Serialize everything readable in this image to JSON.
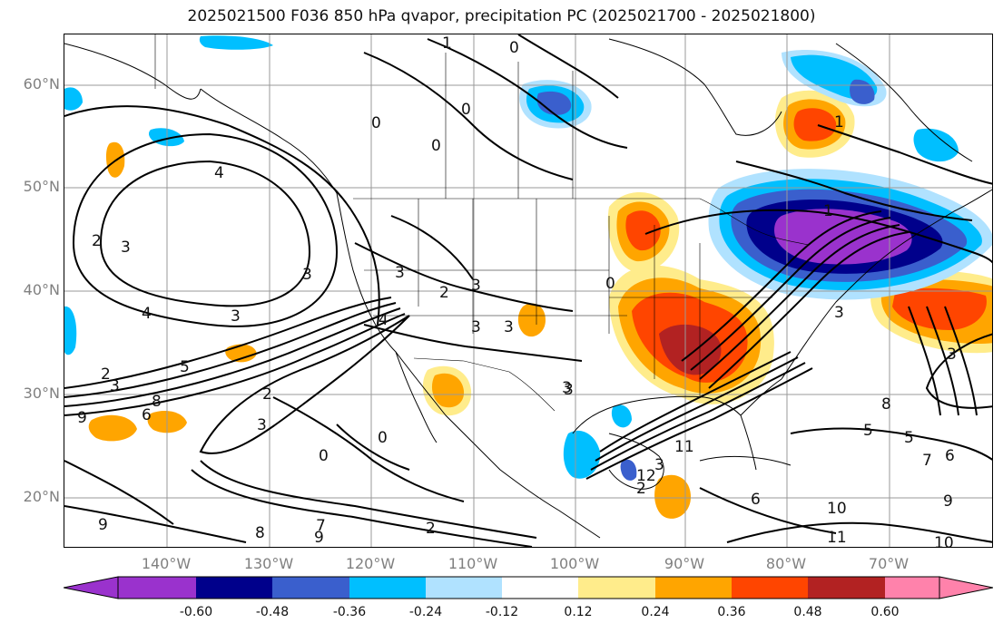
{
  "title": "2025021500 F036 850 hPa qvapor, precipitation PC (2025021700 - 2025021800)",
  "map": {
    "lat_labels": [
      "60°N",
      "50°N",
      "40°N",
      "30°N",
      "20°N"
    ],
    "lon_labels": [
      "140°W",
      "130°W",
      "120°W",
      "110°W",
      "100°W",
      "90°W",
      "80°W",
      "70°W"
    ],
    "extent": {
      "lon_min": -150,
      "lon_max": -59,
      "lat_min": 15,
      "lat_max": 65
    },
    "contour_labels": [
      "1",
      "0",
      "0",
      "0",
      "0",
      "4",
      "2",
      "3",
      "3",
      "3",
      "2",
      "3",
      "3",
      "3",
      "4",
      "4",
      "3",
      "5",
      "2",
      "3",
      "9",
      "8",
      "6",
      "2",
      "3",
      "0",
      "2",
      "3",
      "0",
      "7",
      "8",
      "9",
      "9",
      "2",
      "3",
      "11",
      "12",
      "6",
      "10",
      "11",
      "10",
      "3",
      "5",
      "8",
      "6",
      "7",
      "5",
      "3",
      "9",
      "3",
      "1",
      "1",
      "0"
    ]
  },
  "colorbar": {
    "colors": [
      "#9a32cd",
      "#00008b",
      "#3a5fcd",
      "#00bfff",
      "#b0e2ff",
      "#ffffff",
      "#ffec8b",
      "#ffa500",
      "#ff4500",
      "#b22222",
      "#ff82ab"
    ],
    "tick_labels": [
      "-0.60",
      "-0.48",
      "-0.36",
      "-0.24",
      "-0.12",
      "0.12",
      "0.24",
      "0.36",
      "0.48",
      "0.60"
    ]
  }
}
